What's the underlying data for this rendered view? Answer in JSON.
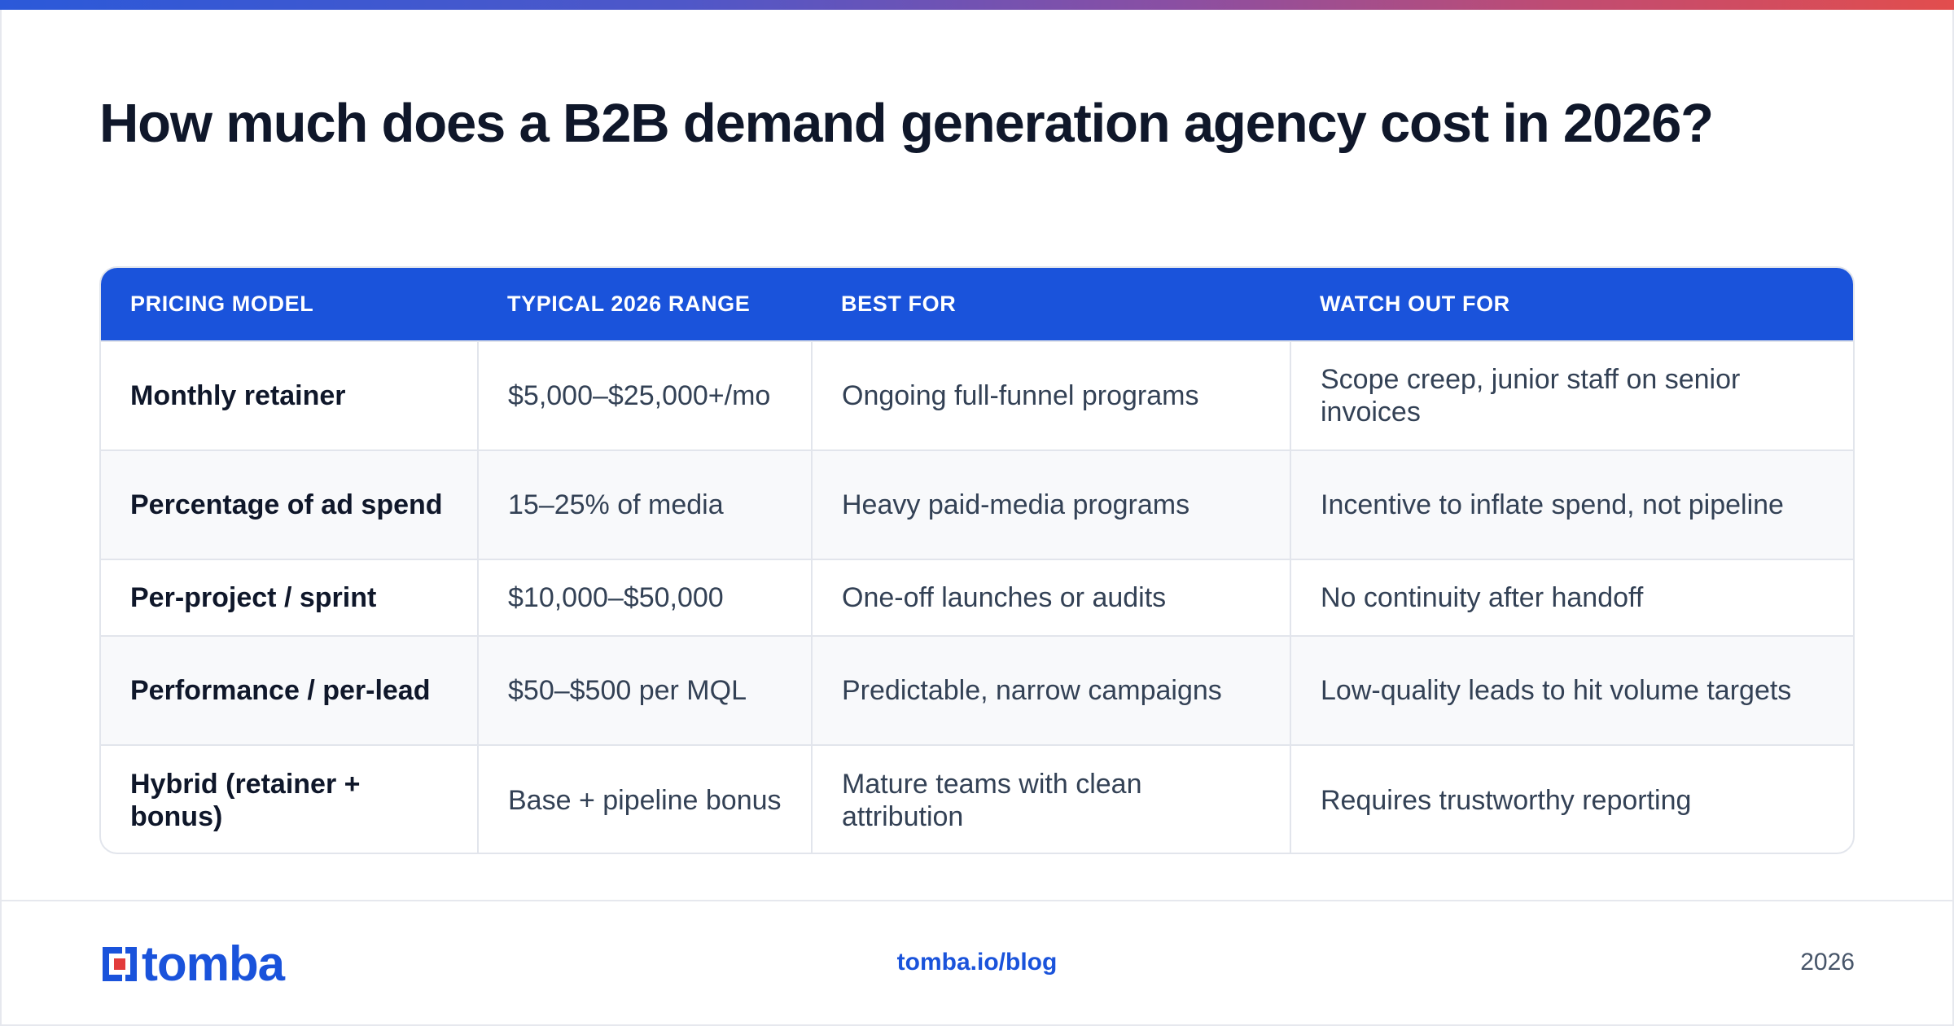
{
  "title": "How much does a B2B demand generation agency cost in 2026?",
  "colors": {
    "accent": "#1a53db",
    "logo_red": "#e23b3b",
    "header_text": "#ffffff",
    "row_alt": "#f8f9fb"
  },
  "table": {
    "headers": [
      "PRICING MODEL",
      "TYPICAL 2026 RANGE",
      "BEST FOR",
      "WATCH OUT FOR"
    ],
    "rows": [
      [
        "Monthly retainer",
        "$5,000–$25,000+/mo",
        "Ongoing full-funnel programs",
        "Scope creep, junior staff on senior invoices"
      ],
      [
        "Percentage of ad spend",
        "15–25% of media",
        "Heavy paid-media programs",
        "Incentive to inflate spend, not pipeline"
      ],
      [
        "Per-project / sprint",
        "$10,000–$50,000",
        "One-off launches or audits",
        "No continuity after handoff"
      ],
      [
        "Performance / per-lead",
        "$50–$500 per MQL",
        "Predictable, narrow campaigns",
        "Low-quality leads to hit volume targets"
      ],
      [
        "Hybrid (retainer + bonus)",
        "Base + pipeline bonus",
        "Mature teams with clean attribution",
        "Requires trustworthy reporting"
      ]
    ]
  },
  "footer": {
    "logo_text": "tomba",
    "logo_icon": "tomba-logo-icon",
    "link": "tomba.io/blog",
    "year": "2026"
  }
}
